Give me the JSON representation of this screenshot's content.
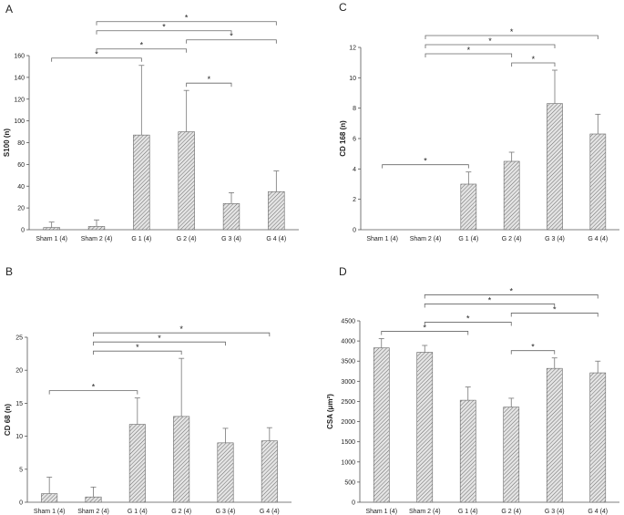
{
  "chart_data": [
    {
      "panel": "A",
      "type": "bar",
      "ylabel": "S100 (n)",
      "ylim": [
        0,
        160
      ],
      "yticks": [
        0,
        20,
        40,
        60,
        80,
        100,
        120,
        140,
        160
      ],
      "categories": [
        "Sham 1 (4)",
        "Sham 2 (4)",
        "G 1 (4)",
        "G 2 (4)",
        "G 3 (4)",
        "G 4 (4)"
      ],
      "values": [
        2,
        3,
        87,
        90,
        24,
        35
      ],
      "error_upper": [
        5,
        6,
        64,
        38,
        10,
        19
      ],
      "significance": [
        {
          "from": 0,
          "to": 2,
          "label": "*"
        },
        {
          "from": 1,
          "to": 3,
          "label": "*"
        },
        {
          "from": 1,
          "to": 4,
          "label": "*"
        },
        {
          "from": 1,
          "to": 5,
          "label": "*"
        },
        {
          "from": 3,
          "to": 4,
          "label": "*"
        },
        {
          "from": 3,
          "to": 5,
          "label": "*"
        }
      ]
    },
    {
      "panel": "C",
      "type": "bar",
      "ylabel": "CD 168 (n)",
      "ylim": [
        0,
        12
      ],
      "yticks": [
        0,
        2,
        4,
        6,
        8,
        10,
        12
      ],
      "categories": [
        "Sham 1 (4)",
        "Sham 2 (4)",
        "G 1 (4)",
        "G 2 (4)",
        "G 3 (4)",
        "G 4 (4)"
      ],
      "values": [
        0,
        0,
        3,
        4.5,
        8.3,
        6.3
      ],
      "error_upper": [
        0,
        0,
        0.8,
        0.6,
        2.2,
        1.3
      ],
      "significance": [
        {
          "from": 0,
          "to": 2,
          "label": "*"
        },
        {
          "from": 1,
          "to": 3,
          "label": "*"
        },
        {
          "from": 1,
          "to": 4,
          "label": "*"
        },
        {
          "from": 1,
          "to": 5,
          "label": "*"
        },
        {
          "from": 3,
          "to": 4,
          "label": "*"
        }
      ]
    },
    {
      "panel": "B",
      "type": "bar",
      "ylabel": "CD 68 (n)",
      "ylim": [
        0,
        25
      ],
      "yticks": [
        0,
        5,
        10,
        15,
        20,
        25
      ],
      "categories": [
        "Sham 1 (4)",
        "Sham 2 (4)",
        "G 1 (4)",
        "G 2 (4)",
        "G 3 (4)",
        "G 4 (4)"
      ],
      "values": [
        1.3,
        0.8,
        11.8,
        13,
        9,
        9.3
      ],
      "error_upper": [
        2.5,
        1.5,
        4,
        8.8,
        2.2,
        2
      ],
      "significance": [
        {
          "from": 0,
          "to": 2,
          "label": "*"
        },
        {
          "from": 1,
          "to": 3,
          "label": "*"
        },
        {
          "from": 1,
          "to": 4,
          "label": "*"
        },
        {
          "from": 1,
          "to": 5,
          "label": "*"
        }
      ]
    },
    {
      "panel": "D",
      "type": "bar",
      "ylabel": "CSA (μm²)",
      "ylim": [
        0,
        4500
      ],
      "yticks": [
        0,
        500,
        1000,
        1500,
        2000,
        2500,
        3000,
        3500,
        4000,
        4500
      ],
      "categories": [
        "Sham 1 (4)",
        "Sham 2 (4)",
        "G 1 (4)",
        "G 2 (4)",
        "G 3 (4)",
        "G 4 (4)"
      ],
      "values": [
        3830,
        3720,
        2530,
        2360,
        3320,
        3210
      ],
      "error_upper": [
        230,
        170,
        330,
        220,
        260,
        290
      ],
      "significance": [
        {
          "from": 0,
          "to": 2,
          "label": "*"
        },
        {
          "from": 1,
          "to": 3,
          "label": "*"
        },
        {
          "from": 1,
          "to": 4,
          "label": "*"
        },
        {
          "from": 1,
          "to": 5,
          "label": "*"
        },
        {
          "from": 3,
          "to": 4,
          "label": "*"
        },
        {
          "from": 3,
          "to": 5,
          "label": "*"
        }
      ]
    }
  ]
}
